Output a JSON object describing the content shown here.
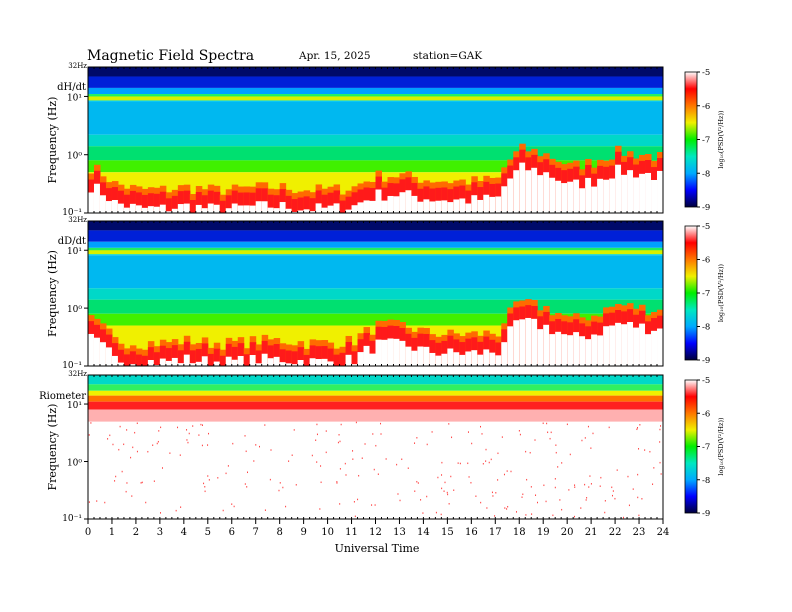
{
  "header": {
    "title": "Magnetic  Field  Spectra",
    "date": "Apr. 15, 2025",
    "station": "station=GAK"
  },
  "chart_data": {
    "type": "heatmap",
    "xlabel": "Universal Time",
    "x_ticks": [
      "0",
      "1",
      "2",
      "3",
      "4",
      "5",
      "6",
      "7",
      "8",
      "9",
      "10",
      "11",
      "12",
      "13",
      "14",
      "15",
      "16",
      "17",
      "18",
      "19",
      "20",
      "21",
      "22",
      "23",
      "24"
    ],
    "xlim": [
      0,
      24
    ],
    "colorbar": {
      "label": "log₁₀(PSD(V²/Hz))",
      "ticks": [
        "-5",
        "-6",
        "-7",
        "-8",
        "-9"
      ],
      "range": [
        -9,
        -5
      ],
      "colors": [
        "#00003c",
        "#0000ff",
        "#00aaff",
        "#00e8c0",
        "#00ee00",
        "#f0f000",
        "#ff7700",
        "#ff0000",
        "#ffffff"
      ]
    },
    "panels": [
      {
        "name": "dH/dt",
        "ylabel": "Frequency  (Hz)",
        "y_top_label": "32Hz",
        "y_tick_labels": [
          "10¹",
          "10⁰",
          "10⁻¹"
        ],
        "yscale": "log",
        "ylim": [
          0.1,
          32
        ],
        "floor_profile": [
          0.5,
          0.25,
          0.2,
          0.2,
          0.22,
          0.2,
          0.2,
          0.22,
          0.22,
          0.2,
          0.2,
          0.22,
          0.35,
          0.35,
          0.3,
          0.28,
          0.28,
          0.3,
          1.0,
          0.8,
          0.5,
          0.6,
          0.9,
          0.8,
          0.7
        ]
      },
      {
        "name": "dD/dt",
        "ylabel": "Frequency  (Hz)",
        "y_top_label": "32Hz",
        "y_tick_labels": [
          "10¹",
          "10⁰",
          "10⁻¹"
        ],
        "yscale": "log",
        "ylim": [
          0.1,
          32
        ],
        "floor_profile": [
          0.5,
          0.22,
          0.2,
          0.2,
          0.22,
          0.2,
          0.2,
          0.22,
          0.22,
          0.2,
          0.2,
          0.22,
          0.4,
          0.4,
          0.3,
          0.28,
          0.28,
          0.3,
          1.0,
          0.8,
          0.5,
          0.6,
          0.9,
          0.8,
          0.7
        ]
      },
      {
        "name": "Riometer",
        "ylabel": "Frequency  (Hz)",
        "y_top_label": "32Hz",
        "y_tick_labels": [
          "10¹",
          "10⁰",
          "10⁻¹"
        ],
        "yscale": "log",
        "ylim": [
          0.1,
          32
        ],
        "floor_profile": [
          12,
          12,
          12,
          12,
          12,
          12,
          12,
          12,
          12,
          12,
          12,
          12,
          12,
          12,
          12,
          12,
          12,
          12,
          12,
          12,
          12,
          12,
          12,
          12,
          12
        ]
      }
    ]
  }
}
